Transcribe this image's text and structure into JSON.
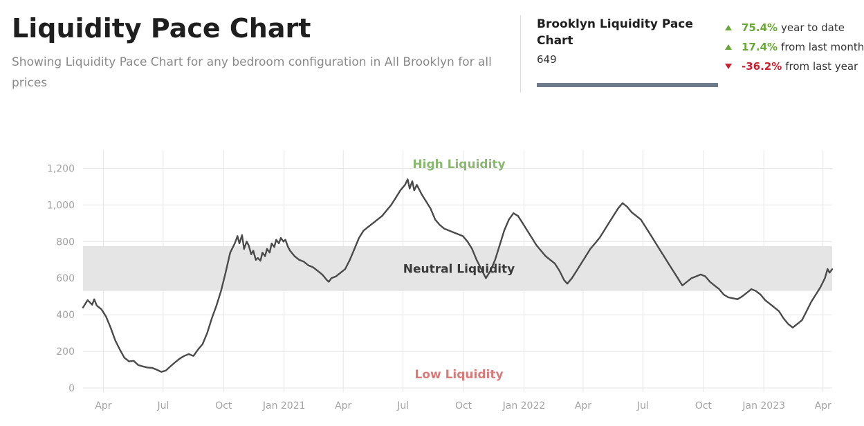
{
  "header": {
    "title": "Liquidity Pace Chart",
    "subtitle": "Showing Liquidity Pace Chart for any bedroom configuration in All Brooklyn for all prices"
  },
  "summary": {
    "title": "Brooklyn Liquidity Pace Chart",
    "value": "649",
    "bar_color": "#6e7b8a",
    "stats": [
      {
        "direction": "up",
        "value": "75.4%",
        "label": "year to date"
      },
      {
        "direction": "up",
        "value": "17.4%",
        "label": "from last month"
      },
      {
        "direction": "down",
        "value": "-36.2%",
        "label": "from last year"
      }
    ]
  },
  "chart_data": {
    "type": "line",
    "title": "",
    "xlabel": "",
    "ylabel": "",
    "ylim": [
      0,
      1300
    ],
    "y_ticks": [
      0,
      200,
      400,
      600,
      800,
      1000,
      1200
    ],
    "y_tick_labels": [
      "0",
      "200",
      "400",
      "600",
      "800",
      "1,000",
      "1,200"
    ],
    "x_ticks": [
      {
        "date": "2020-04-01",
        "label": "Apr"
      },
      {
        "date": "2020-07-01",
        "label": "Jul"
      },
      {
        "date": "2020-10-01",
        "label": "Oct"
      },
      {
        "date": "2021-01-01",
        "label": "Jan 2021"
      },
      {
        "date": "2021-04-01",
        "label": "Apr"
      },
      {
        "date": "2021-07-01",
        "label": "Jul"
      },
      {
        "date": "2021-10-01",
        "label": "Oct"
      },
      {
        "date": "2022-01-01",
        "label": "Jan 2022"
      },
      {
        "date": "2022-04-01",
        "label": "Apr"
      },
      {
        "date": "2022-07-01",
        "label": "Jul"
      },
      {
        "date": "2022-10-01",
        "label": "Oct"
      },
      {
        "date": "2023-01-01",
        "label": "Jan 2023"
      },
      {
        "date": "2023-04-01",
        "label": "Apr"
      }
    ],
    "xlim": [
      "2020-03-01",
      "2023-04-15"
    ],
    "grid": true,
    "legend": "none",
    "line_color": "#4a4a4a",
    "neutral_band": {
      "min": 530,
      "max": 775,
      "label": "Neutral Liquidity",
      "color": "#e5e5e5"
    },
    "zone_labels": {
      "high": {
        "text": "High Liquidity",
        "color": "#8ab870"
      },
      "low": {
        "text": "Low Liquidity",
        "color": "#d97a7a"
      },
      "neutral_color": "#3a3a3a"
    },
    "series": [
      {
        "points": [
          [
            "2020-03-01",
            440
          ],
          [
            "2020-03-08",
            480
          ],
          [
            "2020-03-15",
            455
          ],
          [
            "2020-03-18",
            485
          ],
          [
            "2020-03-22",
            450
          ],
          [
            "2020-03-29",
            430
          ],
          [
            "2020-04-05",
            390
          ],
          [
            "2020-04-12",
            330
          ],
          [
            "2020-04-19",
            260
          ],
          [
            "2020-04-26",
            210
          ],
          [
            "2020-05-03",
            165
          ],
          [
            "2020-05-10",
            145
          ],
          [
            "2020-05-17",
            148
          ],
          [
            "2020-05-24",
            125
          ],
          [
            "2020-05-31",
            118
          ],
          [
            "2020-06-07",
            112
          ],
          [
            "2020-06-14",
            110
          ],
          [
            "2020-06-21",
            100
          ],
          [
            "2020-06-28",
            88
          ],
          [
            "2020-07-05",
            95
          ],
          [
            "2020-07-12",
            118
          ],
          [
            "2020-07-19",
            140
          ],
          [
            "2020-07-26",
            160
          ],
          [
            "2020-08-02",
            175
          ],
          [
            "2020-08-09",
            185
          ],
          [
            "2020-08-16",
            175
          ],
          [
            "2020-08-23",
            210
          ],
          [
            "2020-08-30",
            240
          ],
          [
            "2020-09-06",
            300
          ],
          [
            "2020-09-13",
            380
          ],
          [
            "2020-09-20",
            450
          ],
          [
            "2020-09-27",
            530
          ],
          [
            "2020-10-04",
            630
          ],
          [
            "2020-10-11",
            740
          ],
          [
            "2020-10-18",
            790
          ],
          [
            "2020-10-22",
            830
          ],
          [
            "2020-10-25",
            790
          ],
          [
            "2020-10-29",
            835
          ],
          [
            "2020-11-01",
            760
          ],
          [
            "2020-11-05",
            800
          ],
          [
            "2020-11-08",
            780
          ],
          [
            "2020-11-12",
            730
          ],
          [
            "2020-11-15",
            750
          ],
          [
            "2020-11-19",
            700
          ],
          [
            "2020-11-22",
            710
          ],
          [
            "2020-11-26",
            695
          ],
          [
            "2020-11-29",
            740
          ],
          [
            "2020-12-03",
            720
          ],
          [
            "2020-12-06",
            760
          ],
          [
            "2020-12-10",
            740
          ],
          [
            "2020-12-13",
            790
          ],
          [
            "2020-12-17",
            770
          ],
          [
            "2020-12-20",
            810
          ],
          [
            "2020-12-24",
            790
          ],
          [
            "2020-12-27",
            820
          ],
          [
            "2020-12-31",
            800
          ],
          [
            "2021-01-03",
            810
          ],
          [
            "2021-01-07",
            770
          ],
          [
            "2021-01-10",
            750
          ],
          [
            "2021-01-17",
            720
          ],
          [
            "2021-01-24",
            700
          ],
          [
            "2021-01-31",
            690
          ],
          [
            "2021-02-07",
            670
          ],
          [
            "2021-02-14",
            660
          ],
          [
            "2021-02-21",
            640
          ],
          [
            "2021-02-28",
            620
          ],
          [
            "2021-03-07",
            590
          ],
          [
            "2021-03-10",
            580
          ],
          [
            "2021-03-14",
            600
          ],
          [
            "2021-03-21",
            610
          ],
          [
            "2021-03-28",
            630
          ],
          [
            "2021-04-04",
            650
          ],
          [
            "2021-04-11",
            700
          ],
          [
            "2021-04-18",
            760
          ],
          [
            "2021-04-25",
            820
          ],
          [
            "2021-05-02",
            860
          ],
          [
            "2021-05-09",
            880
          ],
          [
            "2021-05-16",
            900
          ],
          [
            "2021-05-23",
            920
          ],
          [
            "2021-05-30",
            940
          ],
          [
            "2021-06-06",
            970
          ],
          [
            "2021-06-13",
            1000
          ],
          [
            "2021-06-20",
            1040
          ],
          [
            "2021-06-27",
            1080
          ],
          [
            "2021-07-04",
            1110
          ],
          [
            "2021-07-08",
            1140
          ],
          [
            "2021-07-11",
            1090
          ],
          [
            "2021-07-15",
            1130
          ],
          [
            "2021-07-18",
            1080
          ],
          [
            "2021-07-22",
            1110
          ],
          [
            "2021-07-29",
            1060
          ],
          [
            "2021-08-05",
            1020
          ],
          [
            "2021-08-12",
            980
          ],
          [
            "2021-08-19",
            920
          ],
          [
            "2021-08-26",
            890
          ],
          [
            "2021-09-02",
            870
          ],
          [
            "2021-09-09",
            860
          ],
          [
            "2021-09-16",
            850
          ],
          [
            "2021-09-23",
            840
          ],
          [
            "2021-09-30",
            830
          ],
          [
            "2021-10-07",
            800
          ],
          [
            "2021-10-14",
            760
          ],
          [
            "2021-10-21",
            700
          ],
          [
            "2021-10-28",
            650
          ],
          [
            "2021-11-04",
            600
          ],
          [
            "2021-11-11",
            640
          ],
          [
            "2021-11-18",
            700
          ],
          [
            "2021-11-25",
            780
          ],
          [
            "2021-12-02",
            860
          ],
          [
            "2021-12-09",
            920
          ],
          [
            "2021-12-16",
            955
          ],
          [
            "2021-12-23",
            940
          ],
          [
            "2021-12-30",
            900
          ],
          [
            "2022-01-06",
            860
          ],
          [
            "2022-01-13",
            820
          ],
          [
            "2022-01-20",
            780
          ],
          [
            "2022-01-27",
            750
          ],
          [
            "2022-02-03",
            720
          ],
          [
            "2022-02-10",
            700
          ],
          [
            "2022-02-17",
            680
          ],
          [
            "2022-02-24",
            640
          ],
          [
            "2022-03-03",
            590
          ],
          [
            "2022-03-08",
            570
          ],
          [
            "2022-03-15",
            600
          ],
          [
            "2022-03-22",
            640
          ],
          [
            "2022-03-29",
            680
          ],
          [
            "2022-04-05",
            720
          ],
          [
            "2022-04-12",
            760
          ],
          [
            "2022-04-19",
            790
          ],
          [
            "2022-04-26",
            820
          ],
          [
            "2022-05-03",
            860
          ],
          [
            "2022-05-10",
            900
          ],
          [
            "2022-05-17",
            940
          ],
          [
            "2022-05-24",
            980
          ],
          [
            "2022-05-31",
            1010
          ],
          [
            "2022-06-07",
            990
          ],
          [
            "2022-06-14",
            960
          ],
          [
            "2022-06-21",
            940
          ],
          [
            "2022-06-28",
            920
          ],
          [
            "2022-07-05",
            880
          ],
          [
            "2022-07-12",
            840
          ],
          [
            "2022-07-19",
            800
          ],
          [
            "2022-07-26",
            760
          ],
          [
            "2022-08-02",
            720
          ],
          [
            "2022-08-09",
            680
          ],
          [
            "2022-08-16",
            640
          ],
          [
            "2022-08-23",
            600
          ],
          [
            "2022-08-30",
            560
          ],
          [
            "2022-09-06",
            580
          ],
          [
            "2022-09-13",
            600
          ],
          [
            "2022-09-20",
            610
          ],
          [
            "2022-09-27",
            620
          ],
          [
            "2022-10-04",
            610
          ],
          [
            "2022-10-11",
            580
          ],
          [
            "2022-10-18",
            560
          ],
          [
            "2022-10-25",
            540
          ],
          [
            "2022-11-01",
            510
          ],
          [
            "2022-11-08",
            495
          ],
          [
            "2022-11-15",
            490
          ],
          [
            "2022-11-22",
            485
          ],
          [
            "2022-11-29",
            500
          ],
          [
            "2022-12-06",
            520
          ],
          [
            "2022-12-13",
            540
          ],
          [
            "2022-12-20",
            530
          ],
          [
            "2022-12-27",
            510
          ],
          [
            "2023-01-03",
            480
          ],
          [
            "2023-01-10",
            460
          ],
          [
            "2023-01-17",
            440
          ],
          [
            "2023-01-24",
            420
          ],
          [
            "2023-01-31",
            380
          ],
          [
            "2023-02-07",
            350
          ],
          [
            "2023-02-14",
            330
          ],
          [
            "2023-02-21",
            350
          ],
          [
            "2023-02-28",
            370
          ],
          [
            "2023-03-07",
            420
          ],
          [
            "2023-03-14",
            470
          ],
          [
            "2023-03-21",
            510
          ],
          [
            "2023-03-28",
            550
          ],
          [
            "2023-04-04",
            600
          ],
          [
            "2023-04-08",
            650
          ],
          [
            "2023-04-11",
            630
          ],
          [
            "2023-04-15",
            649
          ]
        ]
      }
    ]
  }
}
